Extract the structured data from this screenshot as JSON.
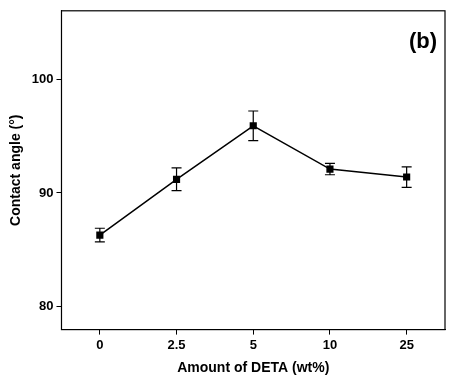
{
  "chart_data": {
    "type": "line",
    "panel_label": "(b)",
    "x_label": "Amount of DETA (wt%)",
    "y_label": "Contact angle (°)",
    "categories": [
      "0",
      "2.5",
      "5",
      "10",
      "25"
    ],
    "values": [
      86.3,
      91.2,
      95.9,
      92.1,
      91.4
    ],
    "errors": [
      0.6,
      1.0,
      1.3,
      0.5,
      0.9
    ],
    "color": "#000000",
    "marker": "square",
    "line_style": "solid",
    "ylim": [
      78,
      106
    ],
    "yticks": [
      80,
      90,
      100
    ],
    "grid": false
  }
}
